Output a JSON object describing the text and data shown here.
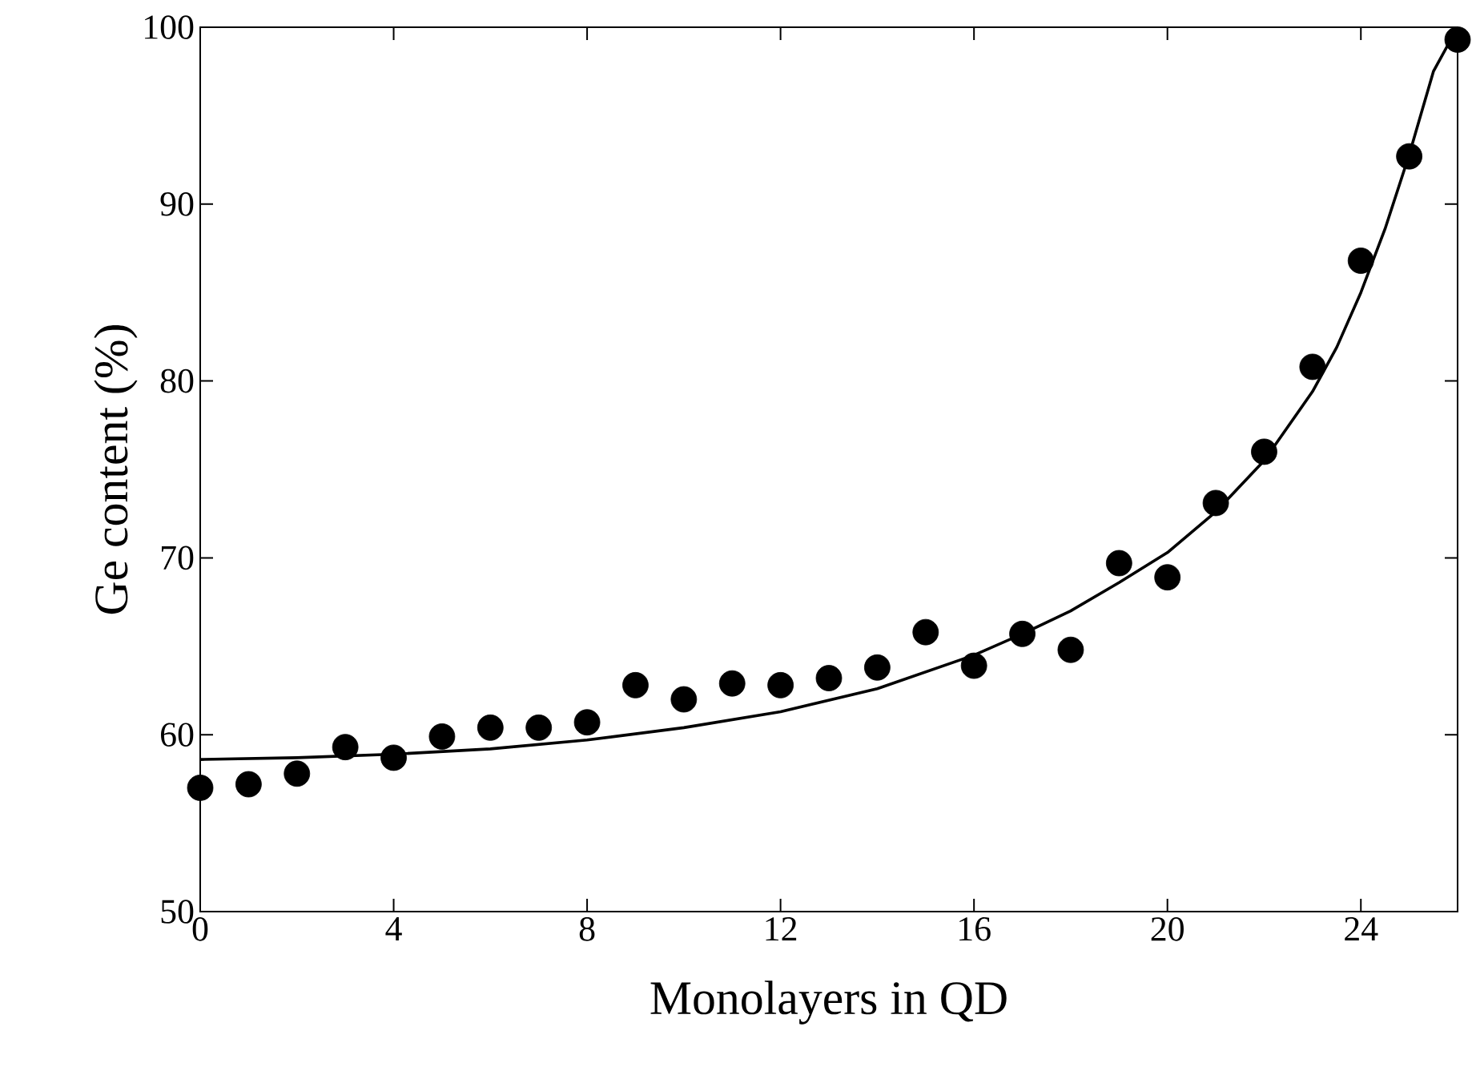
{
  "chart_data": {
    "type": "scatter",
    "xlabel": "Monolayers in QD",
    "ylabel": "Ge content (%)",
    "xlim": [
      0,
      26
    ],
    "ylim": [
      50,
      100
    ],
    "xticks": [
      0,
      4,
      8,
      12,
      16,
      20,
      24
    ],
    "yticks": [
      50,
      60,
      70,
      80,
      90,
      100
    ],
    "grid": false,
    "series": [
      {
        "marker": "circle",
        "color": "#000000",
        "x": [
          0,
          1,
          2,
          3,
          4,
          5,
          6,
          7,
          8,
          9,
          10,
          11,
          12,
          13,
          14,
          15,
          16,
          17,
          18,
          19,
          20,
          21,
          22,
          23,
          24,
          25,
          26
        ],
        "values": [
          57.0,
          57.2,
          57.8,
          59.3,
          58.7,
          59.9,
          60.4,
          60.4,
          60.7,
          62.8,
          62.0,
          62.9,
          62.8,
          63.2,
          63.8,
          65.8,
          63.9,
          65.7,
          64.8,
          69.7,
          68.9,
          73.1,
          76.0,
          80.8,
          86.8,
          92.7,
          99.3
        ]
      },
      {
        "type": "line",
        "marker": "none",
        "line_style": "solid",
        "color": "#000000",
        "x": [
          0,
          2,
          4,
          6,
          8,
          10,
          12,
          14,
          16,
          17,
          18,
          19,
          20,
          21,
          22,
          23,
          23.5,
          24,
          24.5,
          25,
          25.5,
          26
        ],
        "values": [
          58.6,
          58.7,
          58.9,
          59.2,
          59.7,
          60.4,
          61.3,
          62.6,
          64.5,
          65.7,
          67.0,
          68.6,
          70.3,
          72.6,
          75.5,
          79.4,
          81.9,
          85.0,
          88.6,
          92.8,
          97.5,
          100
        ]
      }
    ]
  }
}
